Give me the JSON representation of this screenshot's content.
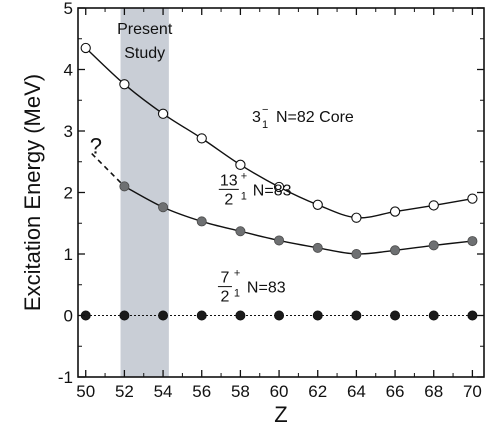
{
  "chart_data": {
    "type": "line",
    "title": "",
    "xlabel": "Z",
    "ylabel": "Excitation Energy (MeV)",
    "xlim": [
      49.6,
      70.6
    ],
    "ylim": [
      -1,
      5
    ],
    "xticks": [
      50,
      52,
      54,
      56,
      58,
      60,
      62,
      64,
      66,
      68,
      70
    ],
    "yticks": [
      -1,
      0,
      1,
      2,
      3,
      4,
      5
    ],
    "shaded_region": {
      "x": [
        51.8,
        54.3
      ],
      "label_line1": "Present",
      "label_line2": "Study"
    },
    "series": [
      {
        "label_main": "3",
        "label_sup": "−",
        "label_sub": "1",
        "label_suffix": "N=82 Core",
        "marker": "open",
        "x": [
          50,
          52,
          54,
          56,
          58,
          60,
          62,
          64,
          66,
          68,
          70
        ],
        "y": [
          4.35,
          3.76,
          3.28,
          2.88,
          2.45,
          2.09,
          1.8,
          1.59,
          1.69,
          1.79,
          1.9
        ]
      },
      {
        "label_num": "13",
        "label_sup": "+",
        "label_den": "2",
        "label_sub": "1",
        "label_suffix": "N=83",
        "marker": "gray",
        "extrapolated_point": {
          "x": 50,
          "y": 2.6,
          "label": "?"
        },
        "x": [
          52,
          54,
          56,
          58,
          60,
          62,
          64,
          66,
          68,
          70
        ],
        "y": [
          2.1,
          1.76,
          1.53,
          1.37,
          1.22,
          1.1,
          1.0,
          1.06,
          1.14,
          1.21
        ]
      },
      {
        "label_num": "7",
        "label_sup": "+",
        "label_den": "2",
        "label_sub": "1",
        "label_suffix": "N=83",
        "marker": "filled",
        "x": [
          50,
          52,
          54,
          56,
          58,
          60,
          62,
          64,
          66,
          68,
          70
        ],
        "y": [
          0,
          0,
          0,
          0,
          0,
          0,
          0,
          0,
          0,
          0,
          0
        ]
      }
    ],
    "colors": {
      "open_fill": "#ffffff",
      "gray_fill": "#6e7072",
      "filled_fill": "#1a1a1a",
      "shade": "#c9ced6",
      "line": "#111111"
    }
  }
}
